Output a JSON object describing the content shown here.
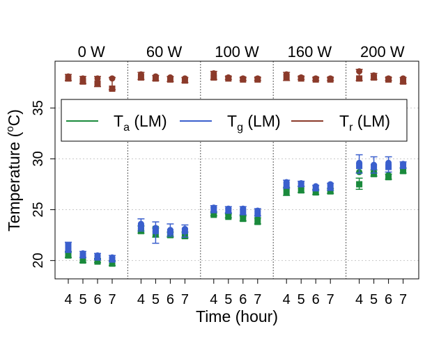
{
  "chart_data": {
    "type": "scatter",
    "ylabel_prefix": "Temperature (",
    "ylabel_sup": "o",
    "ylabel_suffix": "C)",
    "xlabel": "Time (hour)",
    "ylim": [
      18.2,
      39.6
    ],
    "yticks": [
      20,
      25,
      30,
      35
    ],
    "grid": true,
    "legend_position": "upper-middle",
    "panels": [
      {
        "label": "0 W",
        "hours": [
          4,
          5,
          6,
          7
        ]
      },
      {
        "label": "60 W",
        "hours": [
          4,
          5,
          6,
          7
        ]
      },
      {
        "label": "100 W",
        "hours": [
          4,
          5,
          6,
          7
        ]
      },
      {
        "label": "160 W",
        "hours": [
          4,
          5,
          6,
          7
        ]
      },
      {
        "label": "200 W",
        "hours": [
          4,
          5,
          6,
          7
        ]
      }
    ],
    "legend": [
      {
        "base": "T",
        "sub": "a",
        "suffix": " (LM)",
        "color": "#1a8a3c"
      },
      {
        "base": "T",
        "sub": "g",
        "suffix": " (LM)",
        "color": "#3a5fcd"
      },
      {
        "base": "T",
        "sub": "r",
        "suffix": " (LM)",
        "color": "#8b3a2a"
      }
    ],
    "series": [
      {
        "key": "Ta",
        "color": "#1a8a3c",
        "values": [
          [
            [
              20.5,
              20.6,
              20.8
            ],
            [
              20.0,
              20.2
            ],
            [
              19.9,
              20.1
            ],
            [
              19.7,
              19.9
            ]
          ],
          [
            [
              22.9,
              23.2
            ],
            [
              22.6,
              22.8,
              23.1
            ],
            [
              22.5,
              22.7
            ],
            [
              22.4,
              22.6
            ]
          ],
          [
            [
              24.5,
              24.7
            ],
            [
              24.3,
              24.5
            ],
            [
              24.1,
              24.3
            ],
            [
              23.8,
              24.1
            ]
          ],
          [
            [
              26.7,
              27.0
            ],
            [
              26.9,
              27.1
            ],
            [
              26.7,
              26.9
            ],
            [
              26.8,
              27.0
            ]
          ],
          [
            [
              27.5,
              28.7
            ],
            [
              28.5,
              28.7
            ],
            [
              28.2,
              28.4
            ],
            [
              28.8,
              29.0
            ]
          ]
        ],
        "err": [
          [
            [
              20.3,
              20.9
            ],
            [
              19.8,
              20.3
            ],
            [
              19.8,
              20.2
            ],
            [
              19.5,
              20.0
            ]
          ],
          [
            [
              22.7,
              23.4
            ],
            [
              22.3,
              23.2
            ],
            [
              22.3,
              22.8
            ],
            [
              22.2,
              22.8
            ]
          ],
          [
            [
              24.4,
              24.8
            ],
            [
              24.2,
              24.6
            ],
            [
              23.9,
              24.4
            ],
            [
              23.6,
              24.2
            ]
          ],
          [
            [
              26.4,
              27.2
            ],
            [
              26.7,
              27.3
            ],
            [
              26.5,
              27.0
            ],
            [
              26.6,
              27.1
            ]
          ],
          [
            [
              27.0,
              28.1
            ],
            [
              28.3,
              28.9
            ],
            [
              28.0,
              28.5
            ],
            [
              28.6,
              29.1
            ]
          ]
        ]
      },
      {
        "key": "Tg",
        "color": "#3a5fcd",
        "values": [
          [
            [
              21.1,
              21.3,
              21.5
            ],
            [
              20.5,
              20.7
            ],
            [
              20.3,
              20.5
            ],
            [
              20.1,
              20.3
            ]
          ],
          [
            [
              23.3,
              23.6
            ],
            [
              22.9,
              23.2
            ],
            [
              22.8,
              23.0
            ],
            [
              22.9,
              23.1
            ]
          ],
          [
            [
              25.0,
              25.2
            ],
            [
              24.9,
              25.1
            ],
            [
              24.8,
              25.1
            ],
            [
              24.6,
              24.9
            ]
          ],
          [
            [
              27.4,
              27.7
            ],
            [
              27.5,
              27.6
            ],
            [
              27.1,
              27.3
            ],
            [
              27.2,
              27.5
            ]
          ],
          [
            [
              29.3,
              29.6
            ],
            [
              29.2,
              29.4
            ],
            [
              29.2,
              29.6
            ],
            [
              29.3,
              29.5
            ]
          ]
        ],
        "err": [
          [
            [
              20.8,
              21.8
            ],
            [
              20.3,
              20.9
            ],
            [
              20.1,
              20.7
            ],
            [
              19.9,
              20.5
            ]
          ],
          [
            [
              22.9,
              24.1
            ],
            [
              21.7,
              23.8
            ],
            [
              22.4,
              23.6
            ],
            [
              22.3,
              23.5
            ]
          ],
          [
            [
              24.7,
              25.4
            ],
            [
              24.7,
              25.3
            ],
            [
              24.5,
              25.3
            ],
            [
              24.4,
              25.1
            ]
          ],
          [
            [
              27.1,
              27.9
            ],
            [
              27.3,
              27.8
            ],
            [
              26.9,
              27.4
            ],
            [
              26.9,
              27.6
            ]
          ],
          [
            [
              28.6,
              30.4
            ],
            [
              28.6,
              30.2
            ],
            [
              28.7,
              30.2
            ],
            [
              29.1,
              29.7
            ]
          ]
        ]
      },
      {
        "key": "Tr",
        "color": "#8b3a2a",
        "values": [
          [
            [
              37.9,
              38.1
            ],
            [
              37.6,
              37.9
            ],
            [
              37.4,
              37.9
            ],
            [
              36.9,
              37.9
            ]
          ],
          [
            [
              38.0,
              38.3
            ],
            [
              37.9,
              38.1
            ],
            [
              37.8,
              38.0
            ],
            [
              37.7,
              37.9
            ]
          ],
          [
            [
              38.0,
              38.4
            ],
            [
              37.9,
              38.0
            ],
            [
              37.8,
              37.9
            ],
            [
              37.8,
              37.9
            ]
          ],
          [
            [
              38.0,
              38.3
            ],
            [
              37.9,
              38.0
            ],
            [
              37.8,
              37.9
            ],
            [
              37.8,
              37.9
            ]
          ],
          [
            [
              37.9,
              38.6
            ],
            [
              38.0,
              38.2
            ],
            [
              37.8,
              37.9
            ],
            [
              37.6,
              37.9
            ]
          ]
        ],
        "err": [
          [
            [
              37.7,
              38.3
            ],
            [
              37.4,
              38.1
            ],
            [
              37.1,
              38.1
            ],
            [
              36.8,
              38.0
            ]
          ],
          [
            [
              37.8,
              38.5
            ],
            [
              37.7,
              38.2
            ],
            [
              37.6,
              38.1
            ],
            [
              37.5,
              38.0
            ]
          ],
          [
            [
              37.8,
              38.6
            ],
            [
              37.8,
              38.1
            ],
            [
              37.7,
              38.0
            ],
            [
              37.7,
              38.0
            ]
          ],
          [
            [
              37.7,
              38.5
            ],
            [
              37.8,
              38.1
            ],
            [
              37.7,
              38.0
            ],
            [
              37.7,
              38.0
            ]
          ],
          [
            [
              37.7,
              38.8
            ],
            [
              37.8,
              38.4
            ],
            [
              37.7,
              38.0
            ],
            [
              37.4,
              38.0
            ]
          ]
        ]
      }
    ]
  }
}
